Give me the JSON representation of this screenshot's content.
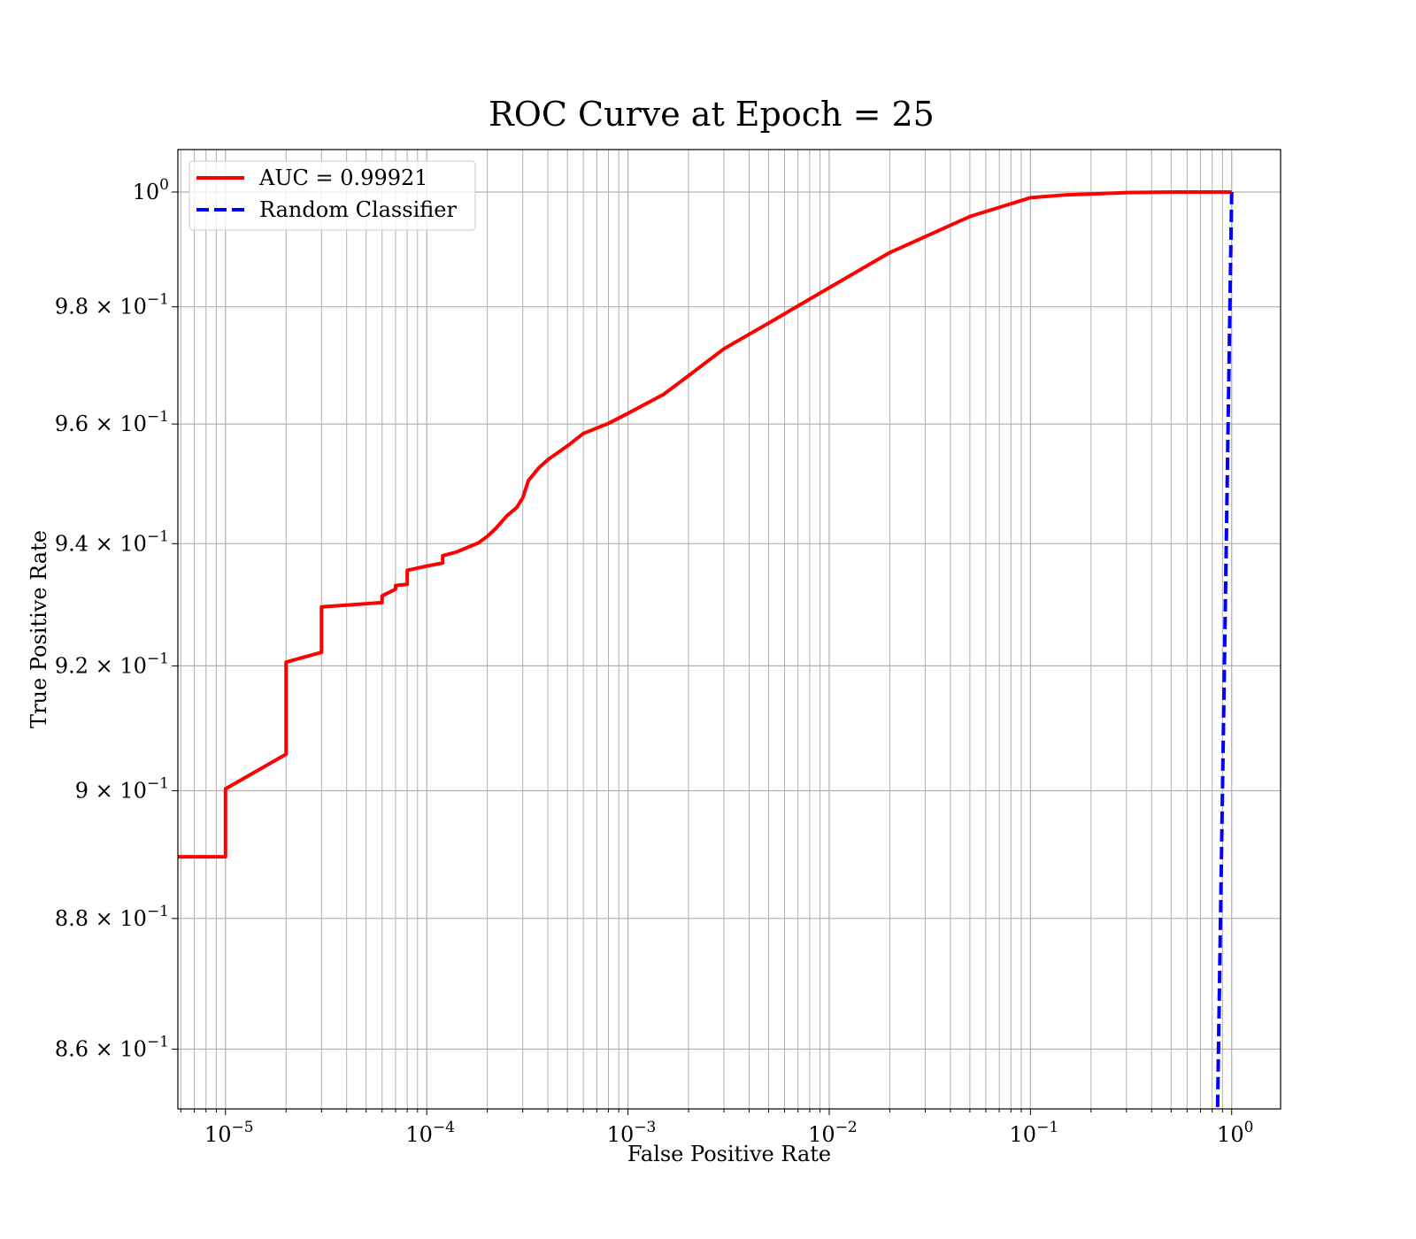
{
  "chart_data": {
    "type": "line",
    "title": "ROC Curve at Epoch = 25",
    "xlabel": "False Positive Rate",
    "ylabel": "True Positive Rate",
    "xscale": "log",
    "yscale": "log",
    "xlim": [
      5.8e-06,
      1.75
    ],
    "ylim": [
      0.851,
      1.0075
    ],
    "grid": true,
    "grid_color": "#b0b0b0",
    "legend_position": "top-left",
    "x_ticks": [
      {
        "value": 1e-05,
        "base": "10",
        "exp": "−5"
      },
      {
        "value": 0.0001,
        "base": "10",
        "exp": "−4"
      },
      {
        "value": 0.001,
        "base": "10",
        "exp": "−3"
      },
      {
        "value": 0.01,
        "base": "10",
        "exp": "−2"
      },
      {
        "value": 0.1,
        "base": "10",
        "exp": "−1"
      },
      {
        "value": 1,
        "base": "10",
        "exp": "0"
      }
    ],
    "y_ticks": [
      {
        "value": 0.86,
        "mant": "8.6",
        "base": "10",
        "exp": "−1"
      },
      {
        "value": 0.88,
        "mant": "8.8",
        "base": "10",
        "exp": "−1"
      },
      {
        "value": 0.9,
        "mant": "9",
        "base": "10",
        "exp": "−1"
      },
      {
        "value": 0.92,
        "mant": "9.2",
        "base": "10",
        "exp": "−1"
      },
      {
        "value": 0.94,
        "mant": "9.4",
        "base": "10",
        "exp": "−1"
      },
      {
        "value": 0.96,
        "mant": "9.6",
        "base": "10",
        "exp": "−1"
      },
      {
        "value": 0.98,
        "mant": "9.8",
        "base": "10",
        "exp": "−1"
      },
      {
        "value": 1.0,
        "mant": "",
        "base": "10",
        "exp": "0"
      }
    ],
    "series": [
      {
        "name": "AUC = 0.99921",
        "color": "#ff0000",
        "style": "solid",
        "x": [
          5.8e-06,
          1e-05,
          1e-05,
          2e-05,
          2e-05,
          3e-05,
          3e-05,
          6e-05,
          6e-05,
          7e-05,
          7e-05,
          8e-05,
          8e-05,
          0.0001,
          0.00012,
          0.00012,
          0.00014,
          0.00016,
          0.00018,
          0.0002,
          0.00022,
          0.00025,
          0.00028,
          0.0003,
          0.00032,
          0.00036,
          0.0004,
          0.0005,
          0.0006,
          0.0008,
          0.001,
          0.0015,
          0.002,
          0.003,
          0.005,
          0.01,
          0.02,
          0.05,
          0.1,
          0.15,
          0.3,
          0.5,
          1
        ],
        "y": [
          0.8896,
          0.8896,
          0.9003,
          0.9058,
          0.9206,
          0.9222,
          0.9296,
          0.9303,
          0.9314,
          0.9325,
          0.9331,
          0.9333,
          0.9356,
          0.9363,
          0.9368,
          0.938,
          0.9386,
          0.9394,
          0.9401,
          0.9412,
          0.9425,
          0.9446,
          0.946,
          0.9476,
          0.9505,
          0.9526,
          0.954,
          0.9563,
          0.9584,
          0.9601,
          0.9618,
          0.965,
          0.9682,
          0.9728,
          0.9772,
          0.9833,
          0.9894,
          0.9957,
          0.999,
          0.9995,
          0.9999,
          1.0,
          1.0
        ]
      },
      {
        "name": "Random Classifier",
        "color": "#0000ff",
        "style": "dashed",
        "x": [
          0.846,
          0.88,
          0.91,
          0.94,
          0.97,
          1.0
        ],
        "y": [
          0.846,
          0.88,
          0.91,
          0.94,
          0.97,
          1.0
        ]
      }
    ]
  }
}
